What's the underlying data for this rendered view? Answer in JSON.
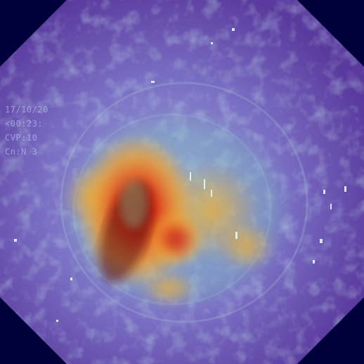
{
  "image": {
    "kind": "endoscopy frame with attention heatmap overlay",
    "colors": {
      "background": "#00003a",
      "field_outer": "#5a3fa8",
      "field_mid": "#7f8fd6",
      "hot_core": "#b8141a",
      "hot_mid": "#e8641e",
      "warm": "#f0b23c",
      "cool": "#7fc6c0"
    }
  },
  "overlay": {
    "line1": "17/10/20",
    "line2": "<00:23:",
    "line3": "CVP:10",
    "line4": "Cn:N    3"
  }
}
